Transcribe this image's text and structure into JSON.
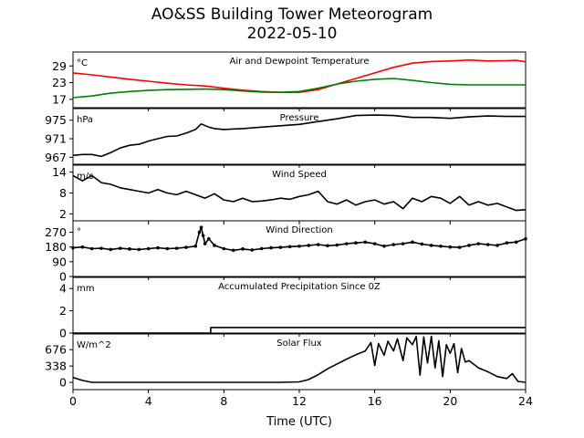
{
  "figure": {
    "title": "AO&SS Building Tower Meteorogram",
    "subtitle": "2022-05-10",
    "xlabel": "Time (UTC)"
  },
  "colors": {
    "temperature": "#ff0000",
    "dewpoint": "#008000",
    "default": "#000000"
  },
  "chart_data": [
    {
      "type": "line",
      "title": "Air and Dewpoint Temperature",
      "unit_label": "°C",
      "ylim": [
        14,
        34
      ],
      "yticks": [
        17,
        23,
        29
      ],
      "xlim": [
        0,
        24
      ],
      "xticks": [
        0,
        4,
        8,
        12,
        16,
        20,
        24
      ],
      "series": [
        {
          "color_key": "temperature",
          "x": [
            0,
            1,
            2,
            3,
            4,
            5,
            6,
            7,
            8,
            9,
            10,
            11,
            12,
            13,
            14,
            15,
            16,
            17,
            18,
            19,
            20,
            21,
            22,
            23,
            23.5,
            24
          ],
          "y": [
            26.5,
            25.8,
            25,
            24.2,
            23.5,
            22.8,
            22.2,
            21.8,
            21,
            20.3,
            19.8,
            19.5,
            19.5,
            20.5,
            22.5,
            24.5,
            26.5,
            28.5,
            30,
            30.6,
            30.8,
            31.1,
            30.8,
            30.9,
            31,
            30.5
          ]
        },
        {
          "color_key": "dewpoint",
          "x": [
            0,
            1,
            2,
            3,
            4,
            5,
            6,
            7,
            8,
            9,
            10,
            11,
            12,
            13,
            14,
            15,
            16,
            17,
            18,
            19,
            20,
            21,
            22,
            23,
            24
          ],
          "y": [
            17.6,
            18.2,
            19.2,
            19.8,
            20.2,
            20.5,
            20.6,
            20.7,
            20.5,
            20,
            19.6,
            19.5,
            19.8,
            21,
            22.5,
            23.5,
            24.2,
            24.5,
            23.8,
            23,
            22.4,
            22.2,
            22.2,
            22.2,
            22.2
          ]
        }
      ]
    },
    {
      "type": "line",
      "title": "Pressure",
      "unit_label": "hPa",
      "ylim": [
        965.5,
        977.5
      ],
      "yticks": [
        967,
        971,
        975
      ],
      "xlim": [
        0,
        24
      ],
      "series": [
        {
          "color_key": "default",
          "x": [
            0,
            0.5,
            1,
            1.5,
            2,
            2.5,
            3,
            3.5,
            4,
            4.5,
            5,
            5.5,
            6,
            6.5,
            6.8,
            7.2,
            7.5,
            8,
            9,
            10,
            11,
            12,
            13,
            14,
            15,
            16,
            17,
            18,
            19,
            20,
            21,
            22,
            23,
            24
          ],
          "y": [
            967.4,
            967.6,
            967.6,
            967.2,
            968,
            969,
            969.6,
            969.8,
            970.5,
            971,
            971.5,
            971.6,
            972.2,
            973,
            974.2,
            973.5,
            973.2,
            973,
            973.2,
            973.5,
            973.8,
            974.1,
            974.7,
            975.3,
            976,
            976.1,
            976,
            975.6,
            975.6,
            975.4,
            975.7,
            975.9,
            975.8,
            975.8
          ]
        }
      ]
    },
    {
      "type": "line",
      "title": "Wind Speed",
      "unit_label": "m/s",
      "ylim": [
        0,
        16
      ],
      "yticks": [
        2,
        8,
        14
      ],
      "xlim": [
        0,
        24
      ],
      "series": [
        {
          "color_key": "default",
          "x": [
            0,
            0.5,
            1,
            1.5,
            2,
            2.5,
            3,
            3.5,
            4,
            4.5,
            5,
            5.5,
            6,
            6.5,
            7,
            7.5,
            8,
            8.5,
            9,
            9.5,
            10,
            10.5,
            11,
            11.5,
            12,
            12.5,
            13,
            13.5,
            14,
            14.5,
            15,
            15.5,
            16,
            16.5,
            17,
            17.5,
            18,
            18.5,
            19,
            19.5,
            20,
            20.5,
            21,
            21.5,
            22,
            22.5,
            23,
            23.5,
            24
          ],
          "y": [
            13,
            11.5,
            13,
            11,
            10.5,
            9.5,
            9,
            8.5,
            8,
            9,
            8,
            7.5,
            8.5,
            7.5,
            6.5,
            7.8,
            6,
            5.5,
            6.5,
            5.5,
            5.7,
            6,
            6.5,
            6.2,
            7,
            7.5,
            8.5,
            5.5,
            4.8,
            6,
            4.5,
            5.5,
            6,
            4.8,
            5.5,
            3.5,
            6.5,
            5.5,
            7,
            6.5,
            5,
            7,
            4.5,
            5.5,
            4.5,
            5,
            4,
            3,
            3.2
          ]
        }
      ]
    },
    {
      "type": "scatter",
      "title": "Wind Direction",
      "unit_label": "°",
      "ylim": [
        0,
        340
      ],
      "yticks": [
        0,
        90,
        180,
        270
      ],
      "xlim": [
        0,
        24
      ],
      "series": [
        {
          "color_key": "default",
          "x": [
            0,
            0.5,
            1,
            1.5,
            2,
            2.5,
            3,
            3.5,
            4,
            4.5,
            5,
            5.5,
            6,
            6.5,
            6.7,
            6.8,
            6.9,
            7,
            7.2,
            7.5,
            8,
            8.5,
            9,
            9.5,
            10,
            10.5,
            11,
            11.5,
            12,
            12.5,
            13,
            13.5,
            14,
            14.5,
            15,
            15.5,
            16,
            16.5,
            17,
            17.5,
            18,
            18.5,
            19,
            19.5,
            20,
            20.5,
            21,
            21.5,
            22,
            22.5,
            23,
            23.5,
            24
          ],
          "y": [
            175,
            180,
            170,
            172,
            165,
            172,
            168,
            165,
            170,
            175,
            170,
            172,
            178,
            185,
            270,
            300,
            250,
            200,
            230,
            190,
            170,
            160,
            168,
            162,
            170,
            175,
            178,
            182,
            185,
            190,
            195,
            188,
            192,
            200,
            205,
            210,
            200,
            185,
            195,
            200,
            210,
            198,
            190,
            185,
            180,
            178,
            190,
            200,
            195,
            190,
            205,
            210,
            230
          ]
        }
      ]
    },
    {
      "type": "line",
      "title": "Accumulated Precipitation Since 0Z",
      "unit_label": "mm",
      "ylim": [
        0,
        5
      ],
      "yticks": [
        0,
        2,
        4
      ],
      "xlim": [
        0,
        24
      ],
      "series": [
        {
          "color_key": "default",
          "x": [
            0,
            7.3,
            7.3,
            24
          ],
          "y": [
            0,
            0,
            0.5,
            0.5
          ]
        }
      ]
    },
    {
      "type": "line",
      "title": "Solar Flux",
      "unit_label": "W/m^2",
      "ylim": [
        -150,
        1000
      ],
      "yticks": [
        0,
        338,
        676
      ],
      "xlim": [
        0,
        24
      ],
      "series": [
        {
          "color_key": "default",
          "x": [
            0,
            0.5,
            1,
            2,
            4,
            6,
            8,
            10,
            11,
            12,
            12.5,
            13,
            13.5,
            14,
            14.5,
            15,
            15.5,
            15.8,
            16,
            16.2,
            16.5,
            16.7,
            17,
            17.2,
            17.5,
            17.7,
            18,
            18.2,
            18.4,
            18.6,
            18.8,
            19,
            19.2,
            19.4,
            19.6,
            19.8,
            20,
            20.2,
            20.4,
            20.6,
            20.8,
            21,
            21.5,
            22,
            22.5,
            23,
            23.3,
            23.6,
            24
          ],
          "y": [
            100,
            40,
            0,
            0,
            0,
            0,
            0,
            0,
            0,
            10,
            60,
            160,
            280,
            380,
            480,
            570,
            650,
            820,
            350,
            800,
            560,
            850,
            650,
            900,
            450,
            920,
            780,
            950,
            150,
            940,
            400,
            950,
            300,
            860,
            120,
            780,
            600,
            800,
            200,
            700,
            420,
            450,
            300,
            220,
            120,
            80,
            180,
            20,
            0
          ]
        }
      ]
    }
  ]
}
